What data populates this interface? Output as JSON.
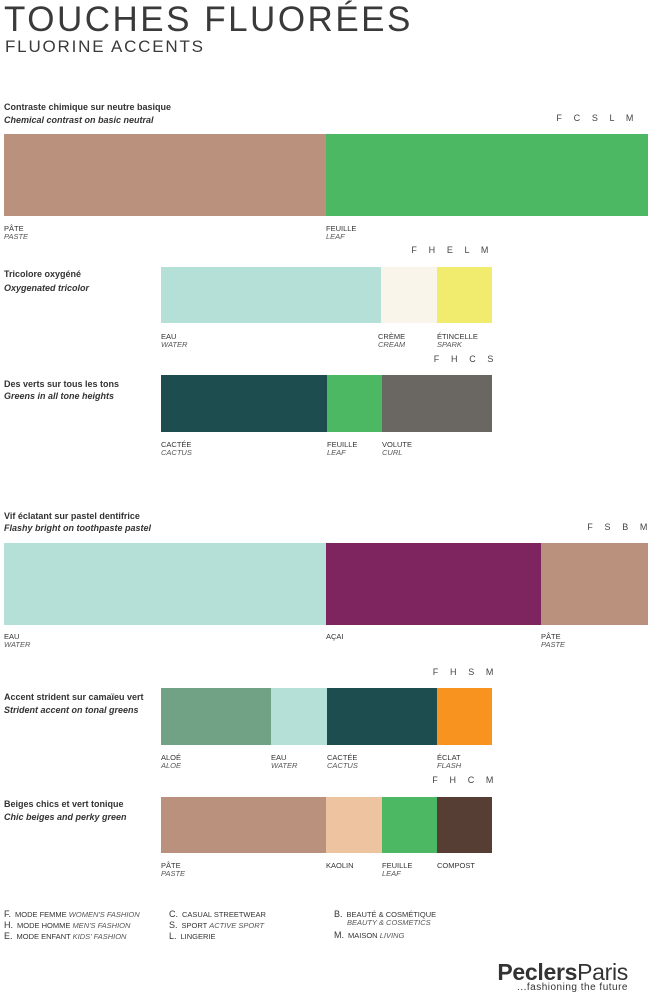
{
  "header": {
    "title": "TOUCHES FLUORÉES",
    "subtitle": "FLUORINE ACCENTS"
  },
  "sections": [
    {
      "fr": "Contraste chimique sur neutre basique",
      "en": "Chemical contrast on basic neutral",
      "codes": "F C S L M",
      "swatches": [
        {
          "color": "#BA917D",
          "fr": "PÂTE",
          "en": "PASTE"
        },
        {
          "color": "#4DB863",
          "fr": "FEUILLE",
          "en": "LEAF"
        }
      ]
    },
    {
      "fr": "Tricolore oxygéné",
      "en": "Oxygenated tricolor",
      "codes": "F H E L M",
      "swatches": [
        {
          "color": "#B5E0D8",
          "fr": "EAU",
          "en": "WATER"
        },
        {
          "color": "#F9F5EA",
          "fr": "CRÈME",
          "en": "CREAM"
        },
        {
          "color": "#F1EB6E",
          "fr": "ÉTINCELLE",
          "en": "SPARK"
        }
      ]
    },
    {
      "fr": "Des verts sur tous les tons",
      "en": "Greens in all tone heights",
      "codes": "F H C S",
      "swatches": [
        {
          "color": "#1D4D4F",
          "fr": "CACTÉE",
          "en": "CACTUS"
        },
        {
          "color": "#4DB863",
          "fr": "FEUILLE",
          "en": "LEAF"
        },
        {
          "color": "#6A6662",
          "fr": "VOLUTE",
          "en": "CURL"
        }
      ]
    },
    {
      "fr": "Vif éclatant sur pastel dentifrice",
      "en": "Flashy bright on toothpaste pastel",
      "codes": "F S B M",
      "swatches": [
        {
          "color": "#B5E0D8",
          "fr": "EAU",
          "en": "WATER"
        },
        {
          "color": "#7E2560",
          "fr": "AÇAI",
          "en": ""
        },
        {
          "color": "#BA917D",
          "fr": "PÂTE",
          "en": "PASTE"
        }
      ]
    },
    {
      "fr": "Accent strident sur camaïeu vert",
      "en": "Strident accent on tonal greens",
      "codes": "F H S M",
      "swatches": [
        {
          "color": "#72A285",
          "fr": "ALOÉ",
          "en": "ALOE"
        },
        {
          "color": "#B5E0D8",
          "fr": "EAU",
          "en": "WATER"
        },
        {
          "color": "#1D4D4F",
          "fr": "CACTÉE",
          "en": "CACTUS"
        },
        {
          "color": "#F7931E",
          "fr": "ÉCLAT",
          "en": "FLASH"
        }
      ]
    },
    {
      "fr": "Beiges chics et vert tonique",
      "en": "Chic beiges and perky green",
      "codes": "F H C M",
      "swatches": [
        {
          "color": "#BA917D",
          "fr": "PÂTE",
          "en": "PASTE"
        },
        {
          "color": "#EEC39F",
          "fr": "KAOLIN",
          "en": ""
        },
        {
          "color": "#4DB863",
          "fr": "FEUILLE",
          "en": "LEAF"
        },
        {
          "color": "#573E35",
          "fr": "COMPOST",
          "en": ""
        }
      ]
    }
  ],
  "legend": {
    "col1": [
      {
        "code": "F.",
        "fr": "MODE FEMME",
        "en": "WOMEN'S FASHION"
      },
      {
        "code": "H.",
        "fr": "MODE HOMME",
        "en": "MEN'S FASHION"
      },
      {
        "code": "E.",
        "fr": "MODE ENFANT",
        "en": "KIDS' FASHION"
      }
    ],
    "col2": [
      {
        "code": "C.",
        "fr": "CASUAL STREETWEAR",
        "en": ""
      },
      {
        "code": "S.",
        "fr": "SPORT",
        "en": "ACTIVE SPORT"
      },
      {
        "code": "L.",
        "fr": "LINGERIE",
        "en": ""
      }
    ],
    "col3": [
      {
        "code": "B.",
        "fr": "BEAUTÉ & COSMÉTIQUE",
        "en": ""
      },
      {
        "code": "",
        "fr": "",
        "en": "BEAUTY & COSMETICS"
      },
      {
        "code": "M.",
        "fr": "MAISON",
        "en": "LIVING"
      }
    ]
  },
  "brand": {
    "part1": "Peclers",
    "part2": "Paris",
    "tagline": "...fashioning the future"
  }
}
